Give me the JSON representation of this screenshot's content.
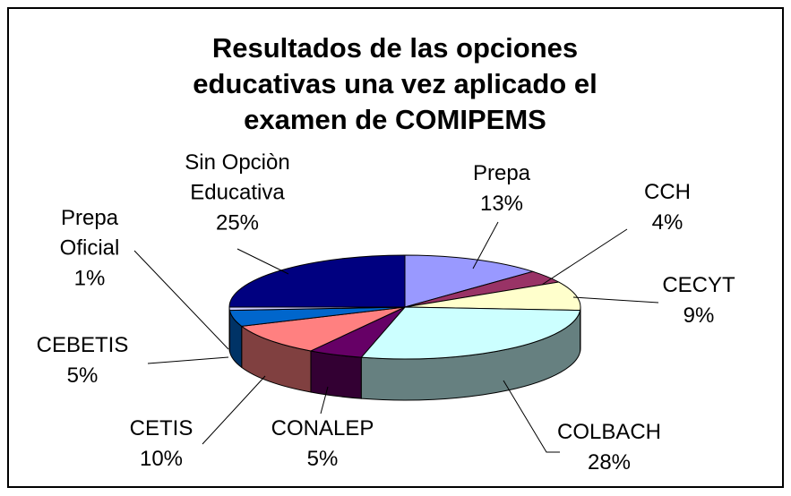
{
  "chart_data": {
    "type": "pie3d",
    "title": "Resultados de las opciones educativas una vez aplicado el examen de COMIPEMS",
    "categories": [
      "Prepa",
      "CCH",
      "CECYT",
      "COLBACH",
      "CONALEP",
      "CETIS",
      "CEBETIS",
      "Prepa Oficial",
      "Sin Opciòn Educativa"
    ],
    "values": [
      13,
      4,
      9,
      28,
      5,
      10,
      5,
      1,
      25
    ],
    "value_labels": [
      "13%",
      "4%",
      "9%",
      "28%",
      "5%",
      "10%",
      "5%",
      "1%",
      "25%"
    ],
    "colors": [
      "#9999FF",
      "#993366",
      "#FFFFCC",
      "#CCFFFF",
      "#660066",
      "#FF8080",
      "#0066CC",
      "#CCCCFF",
      "#000080"
    ]
  }
}
